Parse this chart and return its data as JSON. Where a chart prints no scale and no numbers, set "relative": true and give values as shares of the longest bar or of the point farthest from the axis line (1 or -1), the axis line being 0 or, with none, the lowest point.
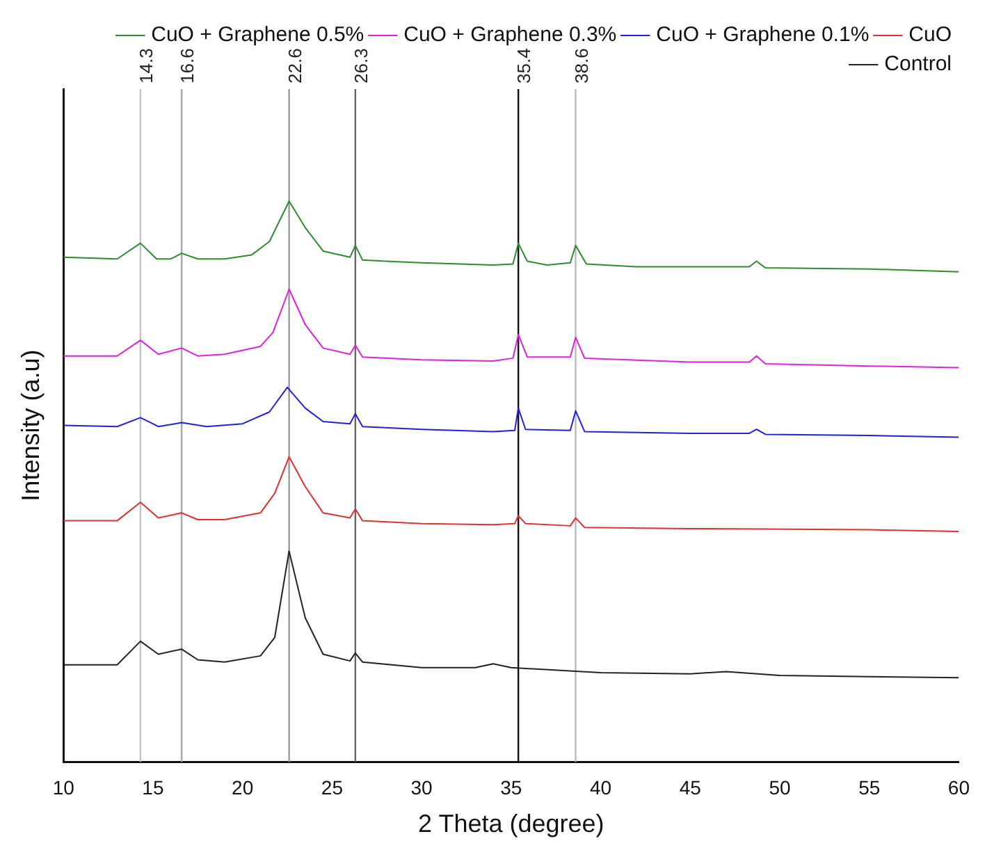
{
  "chart_data": {
    "type": "line",
    "relative": true,
    "xlabel": "2 Theta (degree)",
    "ylabel": "Intensity (a.u)",
    "xlim": [
      10,
      60
    ],
    "xticks": [
      10,
      15,
      20,
      25,
      30,
      35,
      40,
      45,
      50,
      55,
      60
    ],
    "legend": "top right",
    "grid": false,
    "marker": "none",
    "series": [
      {
        "name": "CuO + Graphene 0.5%",
        "color": "#2e8b2e",
        "x": [
          10,
          13,
          14.3,
          15.2,
          16,
          16.6,
          17.5,
          19,
          20.5,
          21.5,
          22.6,
          23.5,
          24.5,
          26,
          26.3,
          26.7,
          28,
          30,
          34,
          35.1,
          35.4,
          35.9,
          37,
          38.3,
          38.6,
          39.2,
          42,
          45,
          48.3,
          48.7,
          49.2,
          55,
          60
        ],
        "values": [
          0.9,
          0.897,
          0.925,
          0.897,
          0.897,
          0.907,
          0.897,
          0.897,
          0.904,
          0.928,
          1,
          0.953,
          0.911,
          0.9,
          0.921,
          0.895,
          0.893,
          0.89,
          0.886,
          0.888,
          0.925,
          0.893,
          0.886,
          0.89,
          0.921,
          0.888,
          0.883,
          0.883,
          0.883,
          0.893,
          0.881,
          0.879,
          0.874
        ]
      },
      {
        "name": "CuO + Graphene 0.3%",
        "color": "#e020e0",
        "x": [
          10,
          13,
          14.3,
          15.3,
          16.6,
          17.5,
          19,
          21,
          21.7,
          22.6,
          23.5,
          24.5,
          26,
          26.3,
          26.7,
          30,
          34,
          35.1,
          35.4,
          35.9,
          38.3,
          38.6,
          39.1,
          45,
          48.3,
          48.7,
          49.2,
          55,
          60
        ],
        "values": [
          0.724,
          0.724,
          0.752,
          0.727,
          0.738,
          0.724,
          0.727,
          0.741,
          0.766,
          0.843,
          0.78,
          0.738,
          0.727,
          0.743,
          0.722,
          0.717,
          0.715,
          0.72,
          0.762,
          0.722,
          0.722,
          0.757,
          0.72,
          0.713,
          0.713,
          0.724,
          0.71,
          0.706,
          0.703
        ]
      },
      {
        "name": "CuO + Graphene 0.1%",
        "color": "#2020e0",
        "x": [
          10,
          13,
          14.3,
          15.3,
          16.6,
          18,
          20,
          21.5,
          22.5,
          23.5,
          24.5,
          26,
          26.3,
          26.7,
          30,
          34,
          35.2,
          35.4,
          35.8,
          38.3,
          38.6,
          39.1,
          45,
          48.3,
          48.7,
          49.2,
          55,
          60
        ],
        "values": [
          0.6,
          0.598,
          0.614,
          0.598,
          0.605,
          0.598,
          0.603,
          0.624,
          0.668,
          0.631,
          0.607,
          0.603,
          0.621,
          0.598,
          0.593,
          0.589,
          0.591,
          0.631,
          0.593,
          0.591,
          0.626,
          0.589,
          0.586,
          0.586,
          0.593,
          0.584,
          0.582,
          0.579
        ]
      },
      {
        "name": "CuO",
        "color": "#e03030",
        "x": [
          10,
          13,
          14.3,
          15.3,
          16.6,
          17.5,
          19,
          21,
          21.8,
          22.6,
          23.5,
          24.5,
          26,
          26.3,
          26.7,
          30,
          34,
          35.2,
          35.4,
          35.8,
          38.3,
          38.6,
          39.1,
          45,
          55,
          60
        ],
        "values": [
          0.43,
          0.43,
          0.463,
          0.435,
          0.444,
          0.432,
          0.432,
          0.444,
          0.479,
          0.544,
          0.491,
          0.444,
          0.435,
          0.451,
          0.43,
          0.425,
          0.423,
          0.425,
          0.439,
          0.425,
          0.421,
          0.435,
          0.418,
          0.416,
          0.414,
          0.411
        ]
      },
      {
        "name": "Control",
        "color": "#222222",
        "x": [
          10,
          13,
          14.3,
          15.3,
          16.6,
          17.5,
          19,
          21,
          21.8,
          22.6,
          23.5,
          24.5,
          26,
          26.3,
          26.7,
          30,
          33,
          34,
          35,
          40,
          45,
          47,
          50,
          55,
          60
        ],
        "values": [
          0.173,
          0.173,
          0.215,
          0.192,
          0.201,
          0.182,
          0.178,
          0.189,
          0.222,
          0.376,
          0.257,
          0.192,
          0.18,
          0.194,
          0.178,
          0.168,
          0.168,
          0.175,
          0.168,
          0.159,
          0.157,
          0.161,
          0.154,
          0.152,
          0.15
        ]
      }
    ],
    "ref_lines": [
      {
        "axis": "x",
        "value": 14.3,
        "label": "14.3",
        "color": "#c0c0c0"
      },
      {
        "axis": "x",
        "value": 16.6,
        "label": "16.6",
        "color": "#a8a8a8"
      },
      {
        "axis": "x",
        "value": 22.6,
        "label": "22.6",
        "color": "#999999"
      },
      {
        "axis": "x",
        "value": 26.3,
        "label": "26.3",
        "color": "#666666"
      },
      {
        "axis": "x",
        "value": 35.4,
        "label": "35.4",
        "color": "#111111"
      },
      {
        "axis": "x",
        "value": 38.6,
        "label": "38.6",
        "color": "#b8b8b8"
      }
    ]
  }
}
